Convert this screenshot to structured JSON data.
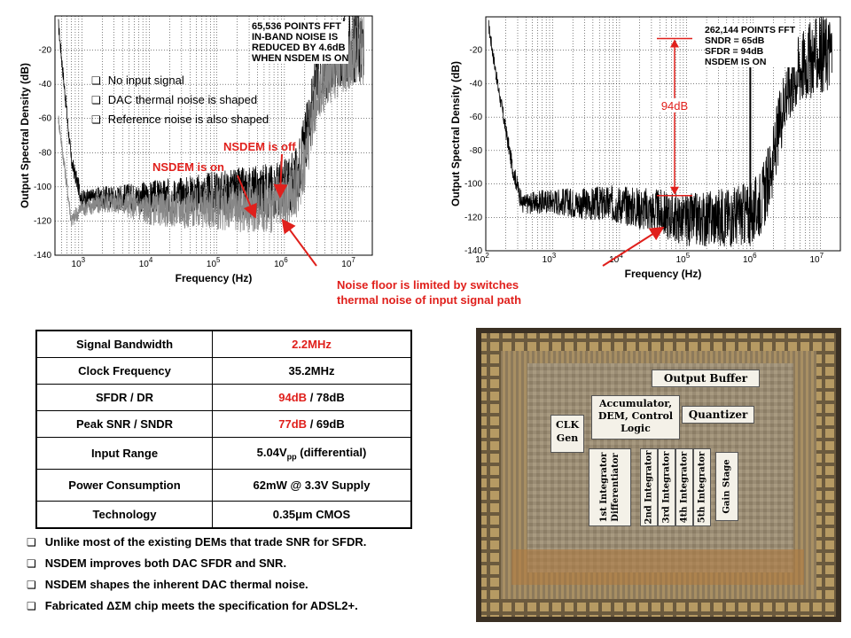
{
  "chart_data": [
    {
      "type": "line",
      "xlabel": "Frequency (Hz)",
      "ylabel": "Output Spectral Density (dB)",
      "xscale": "log",
      "xlim": [
        400,
        20000000
      ],
      "ylim": [
        -140,
        0
      ],
      "yticks": [
        -20,
        -40,
        -60,
        -80,
        -100,
        -120,
        -140
      ],
      "xtick_labels": [
        "10^3",
        "10^4",
        "10^5",
        "10^6",
        "10^7"
      ],
      "grid": true,
      "annotation_lines": [
        "65,536 POINTS FFT",
        "IN-BAND NOISE IS",
        "REDUCED BY 4.6dB",
        "WHEN NSDEM IS ON"
      ],
      "series": [
        {
          "name": "NSDEM is off",
          "color": "#000000",
          "x": [
            450,
            700,
            1000,
            3000,
            10000,
            30000,
            100000,
            300000,
            1000000,
            1500000,
            2000000,
            3000000,
            5000000,
            10000000,
            15000000
          ],
          "y": [
            -5,
            -85,
            -107,
            -106,
            -106,
            -105,
            -104,
            -103,
            -101,
            -95,
            -75,
            -40,
            -25,
            -18,
            -17
          ]
        },
        {
          "name": "NSDEM is on",
          "color": "#888888",
          "x": [
            450,
            700,
            1000,
            3000,
            10000,
            30000,
            100000,
            300000,
            1000000,
            1500000,
            2000000,
            3000000,
            5000000,
            10000000,
            15000000
          ],
          "y": [
            -60,
            -120,
            -112,
            -108,
            -113,
            -113,
            -112,
            -112,
            -110,
            -100,
            -85,
            -45,
            -30,
            -22,
            -20
          ]
        }
      ]
    },
    {
      "type": "line",
      "xlabel": "Frequency (Hz)",
      "ylabel": "Output Spectral Density (dB)",
      "xscale": "log",
      "xlim": [
        100,
        20000000
      ],
      "ylim": [
        -140,
        0
      ],
      "yticks": [
        -20,
        -40,
        -60,
        -80,
        -100,
        -120,
        -140
      ],
      "xtick_labels": [
        "10^2",
        "10^3",
        "10^4",
        "10^5",
        "10^6",
        "10^7"
      ],
      "grid": true,
      "annotation_lines": [
        "262,144 POINTS FFT",
        "SNDR = 65dB",
        "SFDR = 94dB",
        "NSDEM IS ON"
      ],
      "dimension_label": "94dB",
      "signal_tone": {
        "freq": 900000,
        "level": -13
      },
      "series": [
        {
          "name": "",
          "color": "#000000",
          "x": [
            110,
            150,
            250,
            350,
            1000,
            3000,
            10000,
            30000,
            100000,
            300000,
            1000000,
            1500000,
            2000000,
            3000000,
            5000000,
            10000000,
            15000000
          ],
          "y": [
            -5,
            -40,
            -90,
            -112,
            -110,
            -112,
            -112,
            -116,
            -122,
            -120,
            -118,
            -105,
            -85,
            -45,
            -30,
            -22,
            -20
          ]
        }
      ]
    }
  ],
  "plot1": {
    "bullets": [
      "No input signal",
      "DAC thermal noise is shaped",
      "Reference noise is also shaped"
    ],
    "label_off": "NSDEM is off",
    "label_on": "NSDEM is on"
  },
  "callout": {
    "line1": "Noise floor is limited by switches",
    "line2": "thermal noise of input signal path"
  },
  "spec_table": {
    "rows": [
      {
        "label": "Signal Bandwidth",
        "value_red": "2.2MHz",
        "value": ""
      },
      {
        "label": "Clock Frequency",
        "value_red": "",
        "value": "35.2MHz"
      },
      {
        "label": "SFDR / DR",
        "value_red": "94dB",
        "value": " / 78dB"
      },
      {
        "label": "Peak SNR / SNDR",
        "value_red": "77dB",
        "value": " / 69dB"
      },
      {
        "label": "Input Range",
        "value_red": "",
        "value": "5.04V",
        "sub": "pp",
        "value_after": " (differential)"
      },
      {
        "label": "Power Consumption",
        "value_red": "",
        "value": "62mW @ 3.3V Supply"
      },
      {
        "label": "Technology",
        "value_red": "",
        "value": "0.35μm CMOS"
      }
    ]
  },
  "notes": [
    "Unlike most of the existing DEMs that trade SNR for SFDR.",
    "NSDEM improves both DAC SFDR and SNR.",
    "NSDEM shapes the inherent DAC thermal noise.",
    "Fabricated ΔΣM chip meets the specification for ADSL2+."
  ],
  "die": {
    "blocks": {
      "output_buffer": "Output Buffer",
      "accumulator": [
        "Accumulator,",
        "DEM, Control",
        "Logic"
      ],
      "quantizer": "Quantizer",
      "clk": [
        "CLK",
        "Gen"
      ],
      "int1": [
        "1st Integrator",
        "Differentiator"
      ],
      "int2": "2nd Integrator",
      "int3": "3rd Integrator",
      "int4": "4th Integrator",
      "int5": "5th Integrator",
      "gain": "Gain Stage"
    }
  }
}
